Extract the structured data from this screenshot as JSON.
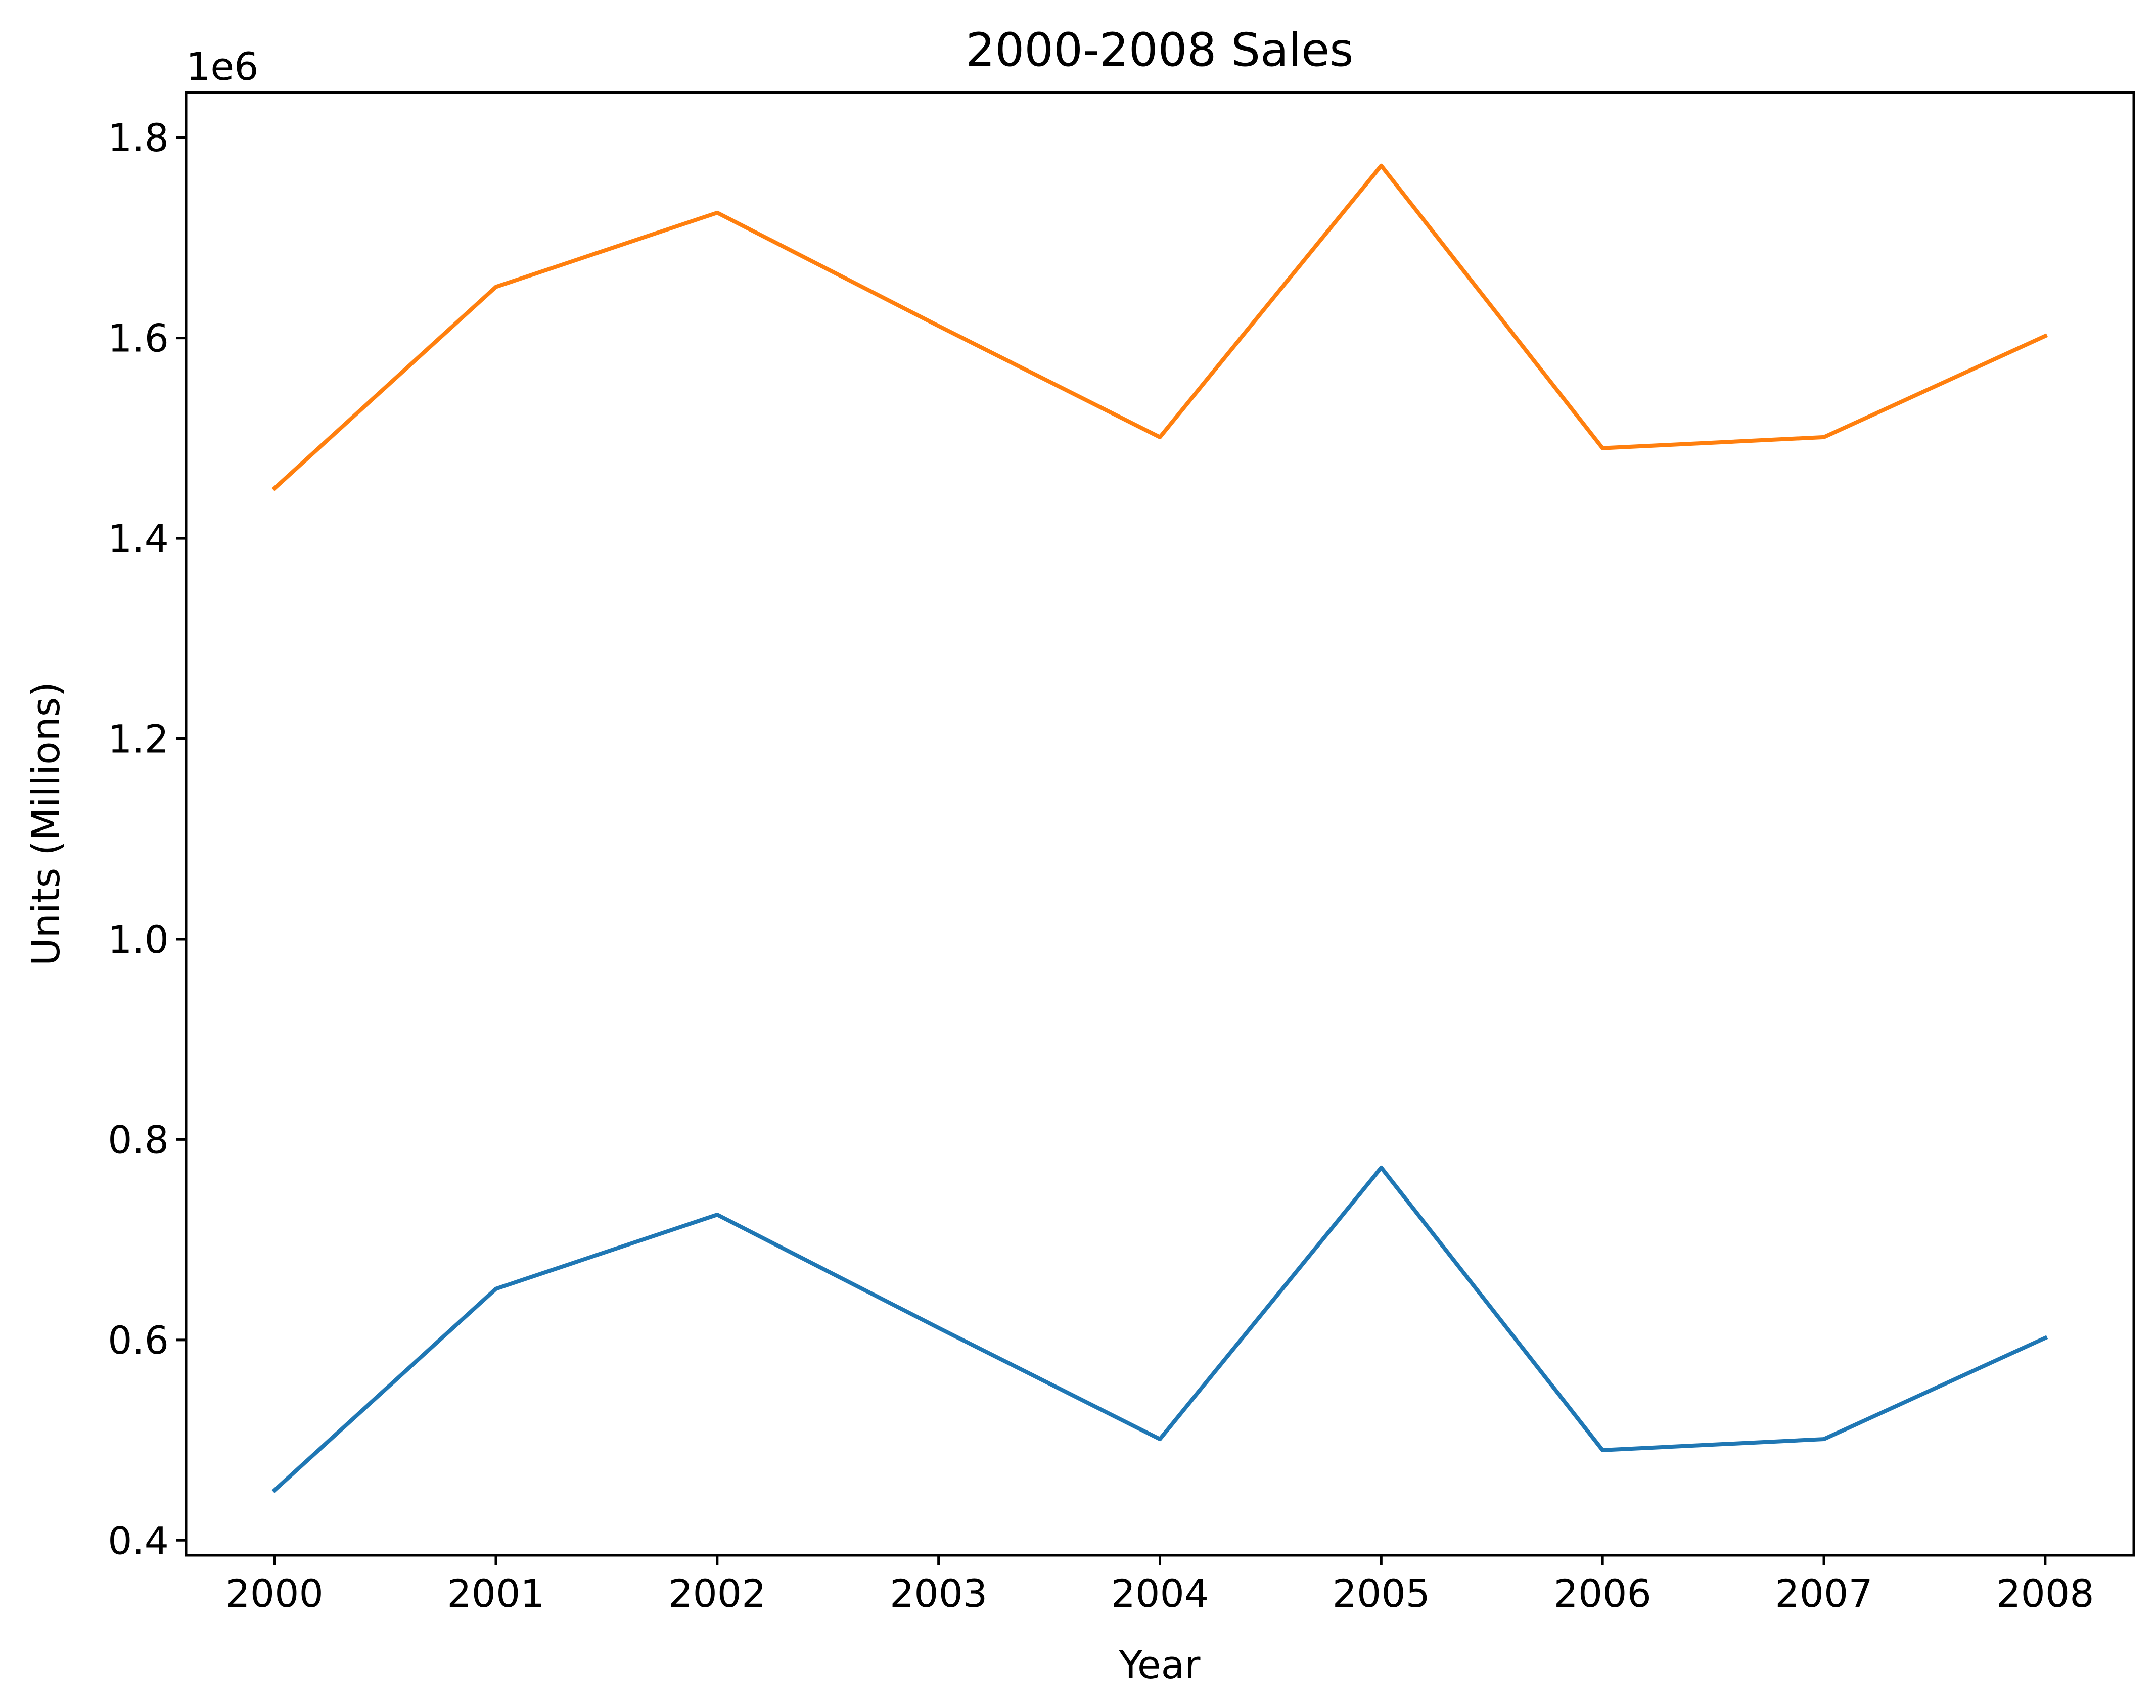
{
  "chart_data": {
    "type": "line",
    "title": "2000-2008 Sales",
    "xlabel": "Year",
    "ylabel": "Units (Millions)",
    "y_offset_label": "1e6",
    "x": [
      2000,
      2001,
      2002,
      2003,
      2004,
      2005,
      2006,
      2007,
      2008
    ],
    "x_ticks": [
      "2000",
      "2001",
      "2002",
      "2003",
      "2004",
      "2005",
      "2006",
      "2007",
      "2008"
    ],
    "y_ticks": [
      400000,
      600000,
      800000,
      1000000,
      1200000,
      1400000,
      1600000,
      1800000
    ],
    "y_tick_labels": [
      "0.4",
      "0.6",
      "0.8",
      "1.0",
      "1.2",
      "1.4",
      "1.6",
      "1.8"
    ],
    "xlim": [
      1999.6,
      2008.4
    ],
    "ylim": [
      385000,
      1845000
    ],
    "grid": false,
    "legend": "none",
    "series": [
      {
        "color": "#1f77b4",
        "values": [
          450000,
          651000,
          725000,
          612000,
          501000,
          772000,
          490000,
          501000,
          602000
        ]
      },
      {
        "color": "#ff7f0e",
        "values": [
          1450000,
          1651000,
          1725000,
          1612000,
          1501000,
          1772000,
          1490000,
          1501000,
          1602000
        ]
      }
    ]
  }
}
